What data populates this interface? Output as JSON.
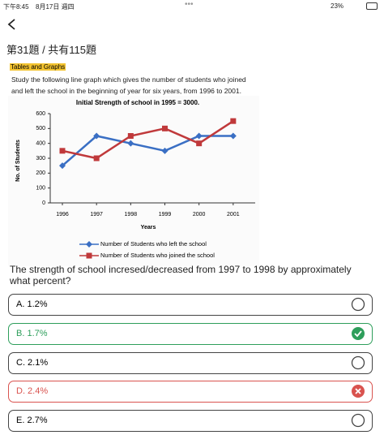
{
  "status_bar": {
    "time": "下午8:45",
    "date": "8月17日 週四",
    "battery": "23%"
  },
  "header": {
    "progress": "第31題 / 共有115題"
  },
  "question": {
    "tag": "Tables and Graphs",
    "intro": "Study the following line graph which gives the number of students who joined and left the school in the beginning of year for six years, from 1996 to 2001.",
    "text": "The strength of school incresed/decreased from 1997 to 1998 by approximately what percent?"
  },
  "chart_data": {
    "type": "line",
    "title": "Initial Strength of school in 1995 = 3000.",
    "x_label": "Years",
    "y_label": "No. of Students",
    "categories": [
      "1996",
      "1997",
      "1998",
      "1999",
      "2000",
      "2001"
    ],
    "ylim": [
      0,
      600
    ],
    "yticks": [
      0,
      100,
      200,
      300,
      400,
      500,
      600
    ],
    "series": [
      {
        "name": "Number of Students who left the school",
        "color": "#3a6fc4",
        "marker": "diamond",
        "values": [
          250,
          450,
          400,
          350,
          450,
          450
        ]
      },
      {
        "name": "Number of Students who joined the school",
        "color": "#c0393b",
        "marker": "square",
        "values": [
          350,
          300,
          450,
          500,
          400,
          550
        ]
      }
    ]
  },
  "options": [
    {
      "label": "A. 1.2%"
    },
    {
      "label": "B. 1.7%",
      "state": "correct"
    },
    {
      "label": "C. 2.1%"
    },
    {
      "label": "D. 2.4%",
      "state": "incorrect"
    },
    {
      "label": "E. 2.7%"
    }
  ]
}
